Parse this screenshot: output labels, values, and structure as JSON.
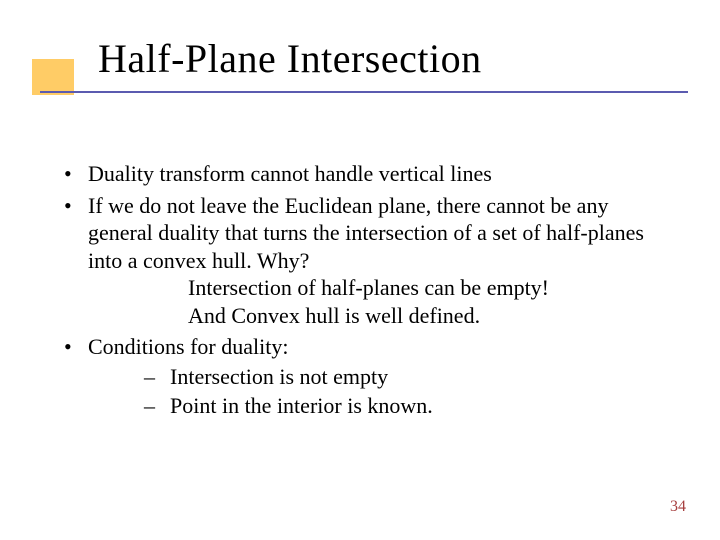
{
  "title": "Half-Plane Intersection",
  "accent_color": "#ffcc66",
  "rule_color": "#5b5bb0",
  "pagenum_color": "#a63f3f",
  "text_color": "#000000",
  "bg_color": "#ffffff",
  "title_fontsize": 40,
  "body_fontsize": 22,
  "pagenum_fontsize": 16,
  "bullets": [
    {
      "text": "Duality transform cannot handle vertical lines"
    },
    {
      "text": "If we do not leave the Euclidean plane, there cannot be any general duality that turns the intersection of a set of half-planes into a convex hull.  Why?",
      "indent_lines": [
        " Intersection of half-planes can be empty!",
        "And Convex hull is well defined."
      ]
    },
    {
      "text": "Conditions for duality:",
      "sub": [
        "Intersection is not empty",
        "Point in the interior is known."
      ]
    }
  ],
  "page_number": "34"
}
